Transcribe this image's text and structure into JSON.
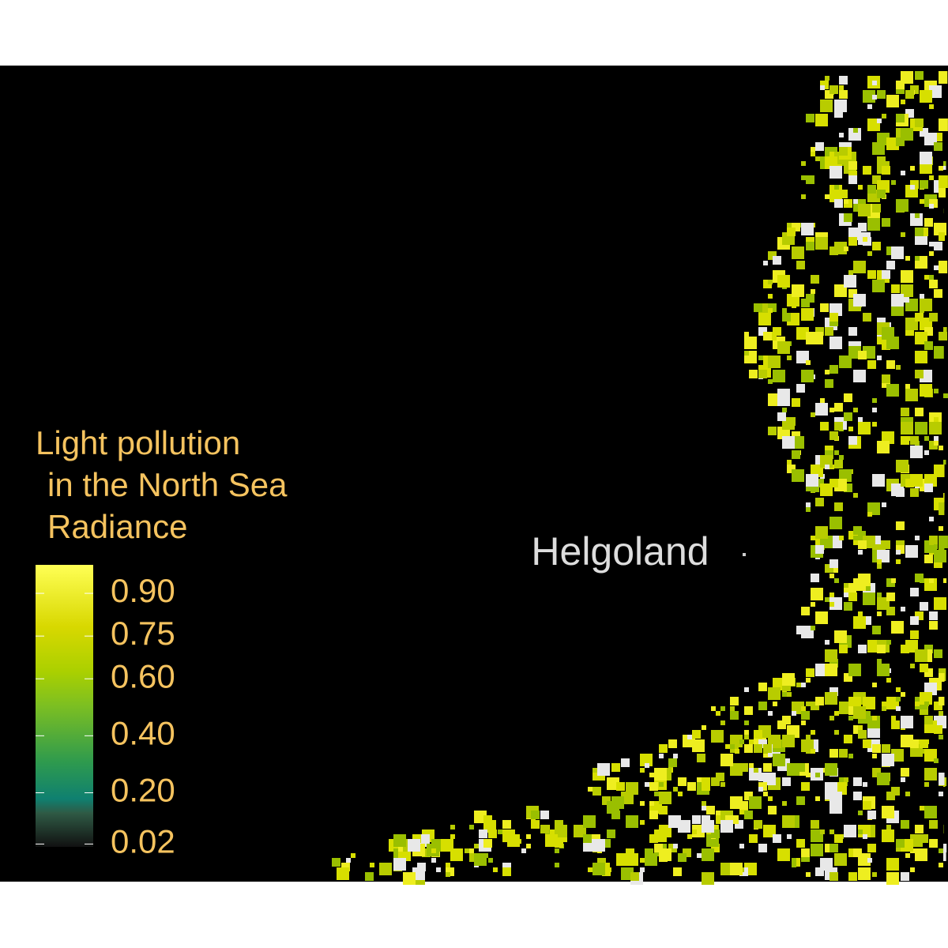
{
  "map": {
    "label": "Helgoland",
    "legend": {
      "title": [
        "Light pollution",
        "in the North Sea",
        "Radiance"
      ],
      "lim": [
        0.01,
        1.0
      ],
      "ticks": [
        {
          "value": 0.9,
          "label": "0.90"
        },
        0.75,
        {
          "value": 0.6,
          "label": "0.60"
        },
        {
          "value": 0.4,
          "label": "0.40"
        },
        {
          "value": 0.2,
          "label": "0.20"
        },
        0.02
      ]
    }
  }
}
